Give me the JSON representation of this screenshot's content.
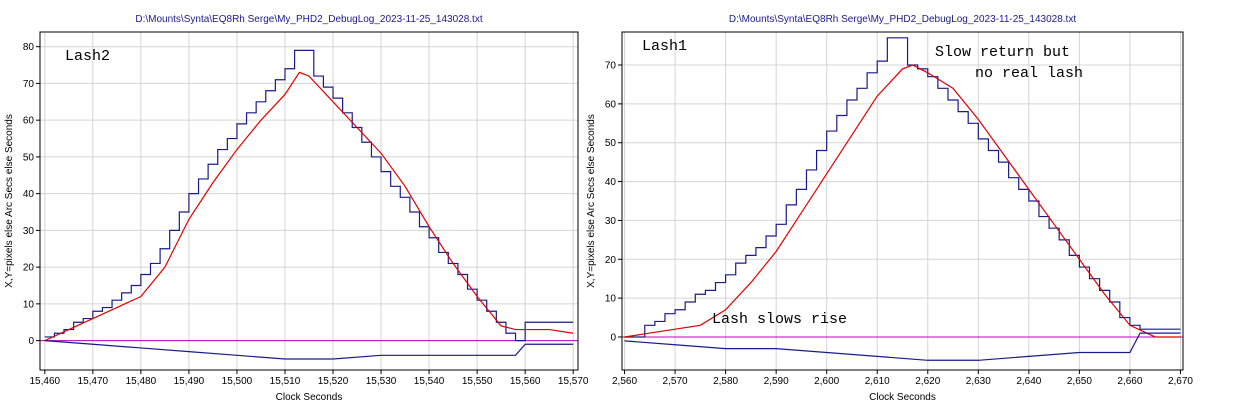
{
  "chart_data": [
    {
      "type": "line",
      "title": "D:\\Mounts\\Synta\\EQ8Rh Serge\\My_PHD2_DebugLog_2023-11-25_143028.txt",
      "xlabel": "Clock Seconds",
      "ylabel": "X,Y=pixels else Arc Secs else Seconds",
      "annotations": [
        "Lash2"
      ],
      "xlim": [
        15459,
        15571
      ],
      "ylim": [
        -8,
        84
      ],
      "xticks": [
        {
          "value": 15460,
          "label": "15,460"
        },
        {
          "value": 15470,
          "label": "15,470"
        },
        {
          "value": 15480,
          "label": "15,480"
        },
        {
          "value": 15490,
          "label": "15,490"
        },
        {
          "value": 15500,
          "label": "15,500"
        },
        {
          "value": 15510,
          "label": "15,510"
        },
        {
          "value": 15520,
          "label": "15,520"
        },
        {
          "value": 15530,
          "label": "15,530"
        },
        {
          "value": 15540,
          "label": "15,540"
        },
        {
          "value": 15550,
          "label": "15,550"
        },
        {
          "value": 15560,
          "label": "15,560"
        },
        {
          "value": 15570,
          "label": "15,570"
        }
      ],
      "yticks": [
        0,
        10,
        20,
        30,
        40,
        50,
        60,
        70,
        80
      ],
      "grid": true,
      "hline": {
        "value": 0,
        "color": "#c000c0"
      },
      "series": [
        {
          "color": "#1a1a8c",
          "step": true,
          "x": [
            15460,
            15462,
            15464,
            15466,
            15468,
            15470,
            15472,
            15474,
            15476,
            15478,
            15480,
            15482,
            15484,
            15486,
            15488,
            15490,
            15492,
            15494,
            15496,
            15498,
            15500,
            15502,
            15504,
            15506,
            15508,
            15510,
            15512,
            15514,
            15516,
            15518,
            15520,
            15522,
            15524,
            15526,
            15528,
            15530,
            15532,
            15534,
            15536,
            15538,
            15540,
            15542,
            15544,
            15546,
            15548,
            15550,
            15552,
            15554,
            15556,
            15558,
            15560,
            15562,
            15564,
            15566,
            15568,
            15570
          ],
          "values": [
            1,
            2,
            3,
            5,
            6,
            8,
            9,
            11,
            13,
            15,
            18,
            21,
            25,
            30,
            35,
            40,
            44,
            48,
            52,
            55,
            59,
            62,
            65,
            68,
            71,
            74,
            79,
            79,
            72,
            69,
            66,
            62,
            58,
            54,
            50,
            46,
            42,
            39,
            35,
            31,
            28,
            24,
            21,
            18,
            14,
            11,
            8,
            5,
            2,
            0,
            5,
            5,
            5,
            5,
            5,
            5
          ]
        },
        {
          "color": "#e00000",
          "step": false,
          "x": [
            15460,
            15465,
            15470,
            15475,
            15480,
            15485,
            15490,
            15495,
            15500,
            15505,
            15510,
            15513,
            15515,
            15520,
            15525,
            15530,
            15535,
            15540,
            15545,
            15550,
            15555,
            15558,
            15560,
            15565,
            15570
          ],
          "values": [
            0,
            3,
            6,
            9,
            12,
            20,
            33,
            43,
            52,
            60,
            67,
            73,
            72,
            65,
            58,
            51,
            42,
            31,
            21,
            12,
            4,
            3,
            3,
            3,
            2
          ]
        },
        {
          "color": "#1a1a8c",
          "step": false,
          "x": [
            15460,
            15470,
            15480,
            15490,
            15500,
            15510,
            15520,
            15530,
            15540,
            15550,
            15558,
            15560,
            15570
          ],
          "values": [
            0,
            -1,
            -2,
            -3,
            -4,
            -5,
            -5,
            -4,
            -4,
            -4,
            -4,
            -1,
            -1
          ]
        }
      ]
    },
    {
      "type": "line",
      "title": "D:\\Mounts\\Synta\\EQ8Rh Serge\\My_PHD2_DebugLog_2023-11-25_143028.txt",
      "xlabel": "Clock Seconds",
      "ylabel": "X,Y=pixels else Arc Secs else Seconds",
      "annotations": [
        "Lash1",
        "Slow return but",
        "no real lash",
        "Lash slows rise"
      ],
      "xlim": [
        2559.5,
        2670.5
      ],
      "ylim": [
        -8.5,
        78.5
      ],
      "xticks": [
        {
          "value": 2560,
          "label": "2,560"
        },
        {
          "value": 2570,
          "label": "2,570"
        },
        {
          "value": 2580,
          "label": "2,580"
        },
        {
          "value": 2590,
          "label": "2,590"
        },
        {
          "value": 2600,
          "label": "2,600"
        },
        {
          "value": 2610,
          "label": "2,610"
        },
        {
          "value": 2620,
          "label": "2,620"
        },
        {
          "value": 2630,
          "label": "2,630"
        },
        {
          "value": 2640,
          "label": "2,640"
        },
        {
          "value": 2650,
          "label": "2,650"
        },
        {
          "value": 2660,
          "label": "2,660"
        },
        {
          "value": 2670,
          "label": "2,670"
        }
      ],
      "yticks": [
        0,
        10,
        20,
        30,
        40,
        50,
        60,
        70
      ],
      "grid": true,
      "hline": {
        "value": 0,
        "color": "#c000c0"
      },
      "series": [
        {
          "color": "#1a1a8c",
          "step": true,
          "x": [
            2560,
            2562,
            2564,
            2566,
            2568,
            2570,
            2572,
            2574,
            2576,
            2578,
            2580,
            2582,
            2584,
            2586,
            2588,
            2590,
            2592,
            2594,
            2596,
            2598,
            2600,
            2602,
            2604,
            2606,
            2608,
            2610,
            2612,
            2614,
            2616,
            2618,
            2620,
            2622,
            2624,
            2626,
            2628,
            2630,
            2632,
            2634,
            2636,
            2638,
            2640,
            2642,
            2644,
            2646,
            2648,
            2650,
            2652,
            2654,
            2656,
            2658,
            2660,
            2662,
            2664,
            2666,
            2668,
            2670
          ],
          "values": [
            0,
            0,
            3,
            4,
            6,
            7,
            9,
            11,
            12,
            14,
            16,
            19,
            21,
            23,
            26,
            29,
            34,
            38,
            43,
            48,
            53,
            57,
            61,
            64,
            68,
            71,
            77,
            77,
            70,
            69,
            67,
            64,
            61,
            58,
            55,
            51,
            48,
            45,
            41,
            38,
            35,
            31,
            28,
            25,
            21,
            18,
            15,
            12,
            9,
            5,
            3,
            2,
            2,
            2,
            2,
            2
          ]
        },
        {
          "color": "#e00000",
          "step": false,
          "x": [
            2560,
            2565,
            2570,
            2575,
            2580,
            2585,
            2590,
            2595,
            2600,
            2605,
            2610,
            2615,
            2617,
            2620,
            2625,
            2630,
            2635,
            2640,
            2645,
            2650,
            2655,
            2660,
            2665,
            2670
          ],
          "values": [
            0,
            1,
            2,
            3,
            7,
            14,
            22,
            32,
            42,
            52,
            62,
            69,
            70,
            68,
            64,
            56,
            47,
            38,
            29,
            20,
            11,
            3,
            0,
            0
          ]
        },
        {
          "color": "#1a1a8c",
          "step": false,
          "x": [
            2560,
            2570,
            2580,
            2590,
            2600,
            2610,
            2620,
            2630,
            2640,
            2650,
            2660,
            2662,
            2670
          ],
          "values": [
            -1,
            -2,
            -3,
            -3,
            -4,
            -5,
            -6,
            -6,
            -5,
            -4,
            -4,
            1,
            1
          ]
        }
      ]
    }
  ]
}
